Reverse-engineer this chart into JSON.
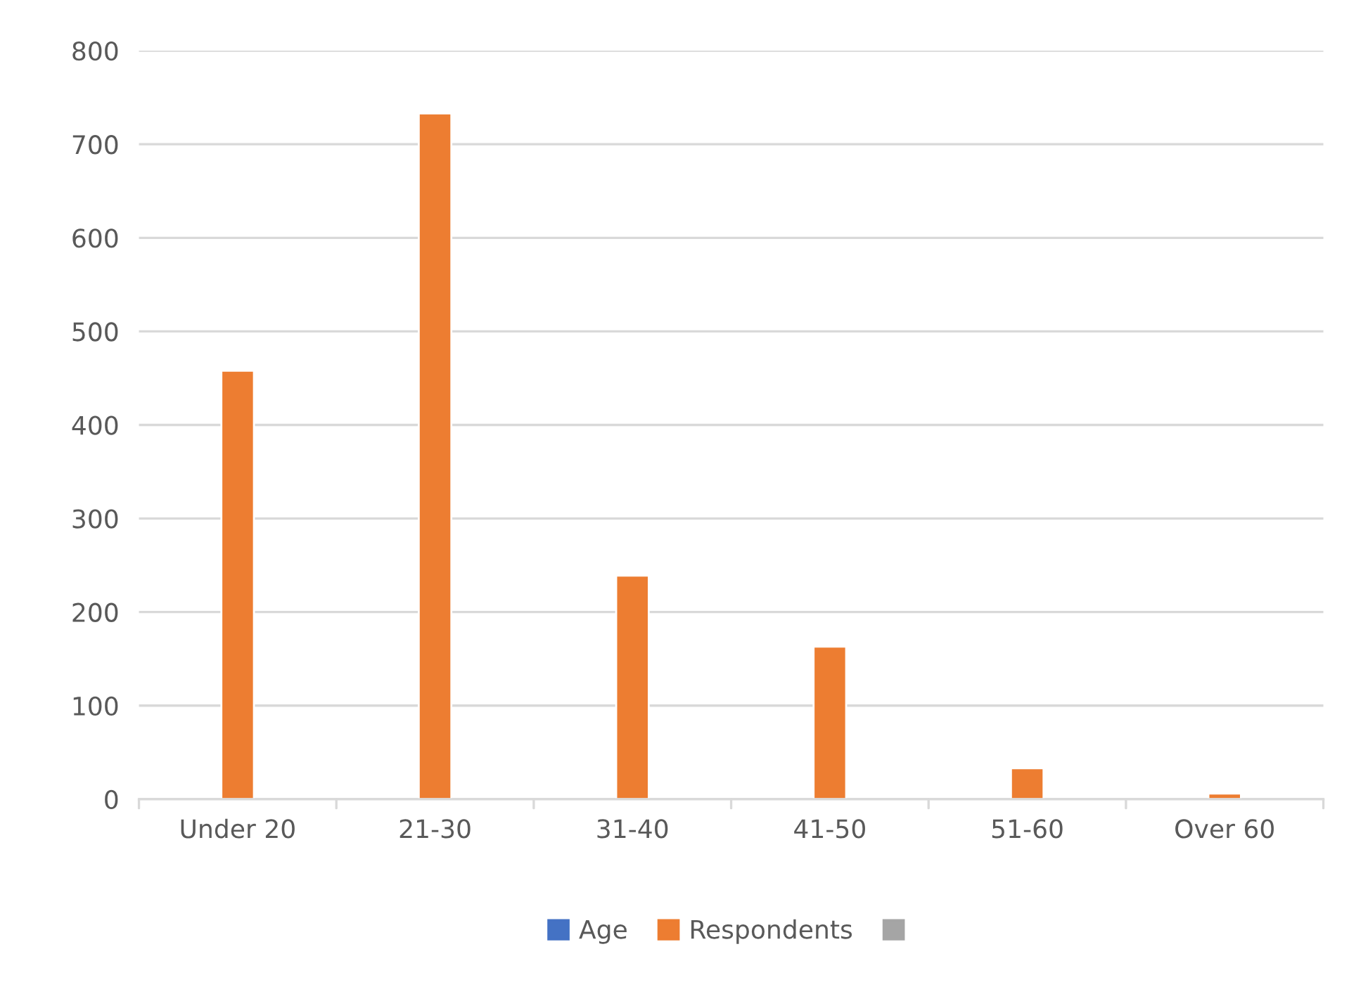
{
  "chart_data": {
    "type": "bar",
    "categories": [
      "Under 20",
      "21-30",
      "31-40",
      "41-50",
      "51-60",
      "Over 60"
    ],
    "series": [
      {
        "name": "Age",
        "color": "#4472c4",
        "values": [
          null,
          null,
          null,
          null,
          null,
          null
        ]
      },
      {
        "name": "Respondents",
        "color": "#ed7d31",
        "values": [
          458,
          733,
          239,
          163,
          33,
          6
        ]
      },
      {
        "color": "#a5a5a5",
        "values": [
          null,
          null,
          null,
          null,
          null,
          null
        ]
      }
    ],
    "ylim": [
      0,
      800
    ],
    "yticks": [
      0,
      100,
      200,
      300,
      400,
      500,
      600,
      700,
      800
    ],
    "grid": "y",
    "legend": "bottom"
  }
}
